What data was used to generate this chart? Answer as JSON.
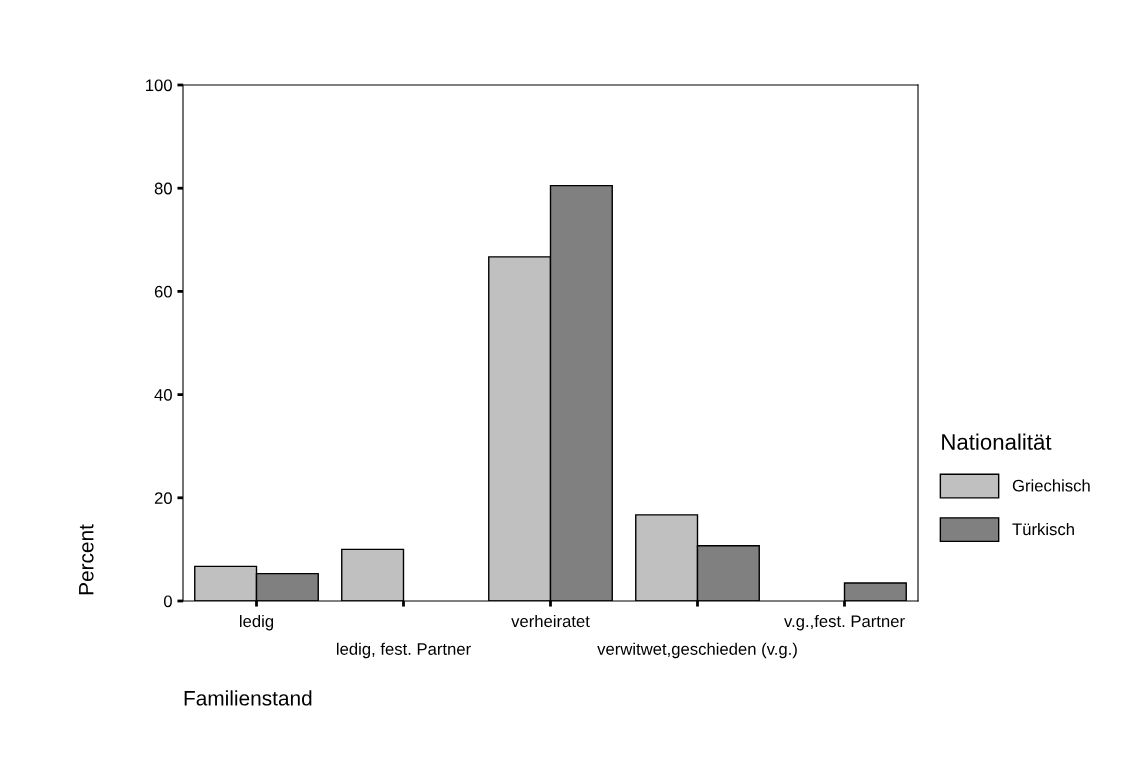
{
  "chart_data": {
    "type": "bar",
    "xlabel": "Familienstand",
    "ylabel": "Percent",
    "legend_title": "Nationalität",
    "categories": [
      "ledig",
      "ledig, fest. Partner",
      "verheiratet",
      "verwitwet,geschieden (v.g.)",
      "v.g.,fest. Partner"
    ],
    "series": [
      {
        "name": "Griechisch",
        "color": "#c0c0c0",
        "values": [
          6.7,
          10,
          66.7,
          16.7,
          0
        ]
      },
      {
        "name": "Türkisch",
        "color": "#808080",
        "values": [
          5.3,
          0,
          80.5,
          10.7,
          3.5
        ]
      }
    ],
    "ylim": [
      0,
      100
    ],
    "yticks": [
      0,
      20,
      40,
      60,
      80,
      100
    ],
    "grid": false,
    "legend": "right"
  }
}
